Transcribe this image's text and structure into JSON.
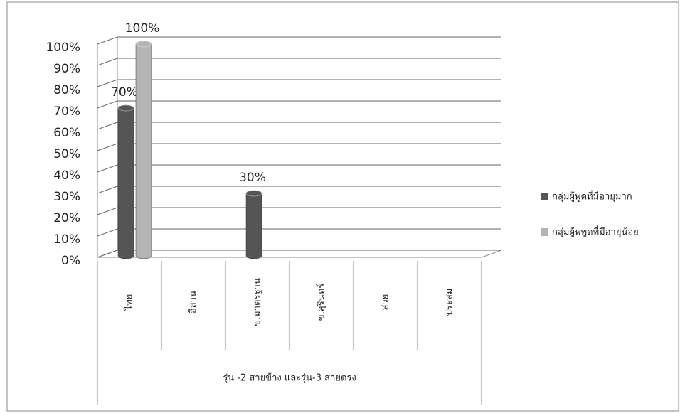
{
  "chart_data": {
    "type": "bar3d",
    "categories": [
      "ไทย",
      "อีสาน",
      "ข.มาตรฐาน",
      "ข.สุรินทร์",
      "ส่วย",
      "ประสม"
    ],
    "category_group": "รุ่น -2 สายข้าง และรุ่น-3 สายตรง",
    "series": [
      {
        "name": "กลุ่มผู้พูดที่มีอายุมาก",
        "color": "#555555",
        "values": [
          70,
          null,
          30,
          null,
          null,
          null
        ],
        "value_labels": [
          "70%",
          null,
          "30%",
          null,
          null,
          null
        ]
      },
      {
        "name": "กลุ่มผู้พพูดที่มีอายุน้อย",
        "color": "#b4b4b4",
        "values": [
          100,
          null,
          null,
          null,
          null,
          null
        ],
        "value_labels": [
          "100%",
          null,
          null,
          null,
          null,
          null
        ]
      }
    ],
    "ylim": [
      0,
      100
    ],
    "yticks": [
      {
        "value": 0,
        "label": "0%"
      },
      {
        "value": 10,
        "label": "10%"
      },
      {
        "value": 20,
        "label": "20%"
      },
      {
        "value": 30,
        "label": "30%"
      },
      {
        "value": 40,
        "label": "40%"
      },
      {
        "value": 50,
        "label": "50%"
      },
      {
        "value": 60,
        "label": "60%"
      },
      {
        "value": 70,
        "label": "70%"
      },
      {
        "value": 80,
        "label": "80%"
      },
      {
        "value": 90,
        "label": "90%"
      },
      {
        "value": 100,
        "label": "100%"
      }
    ],
    "grid": true,
    "legend": "right"
  }
}
